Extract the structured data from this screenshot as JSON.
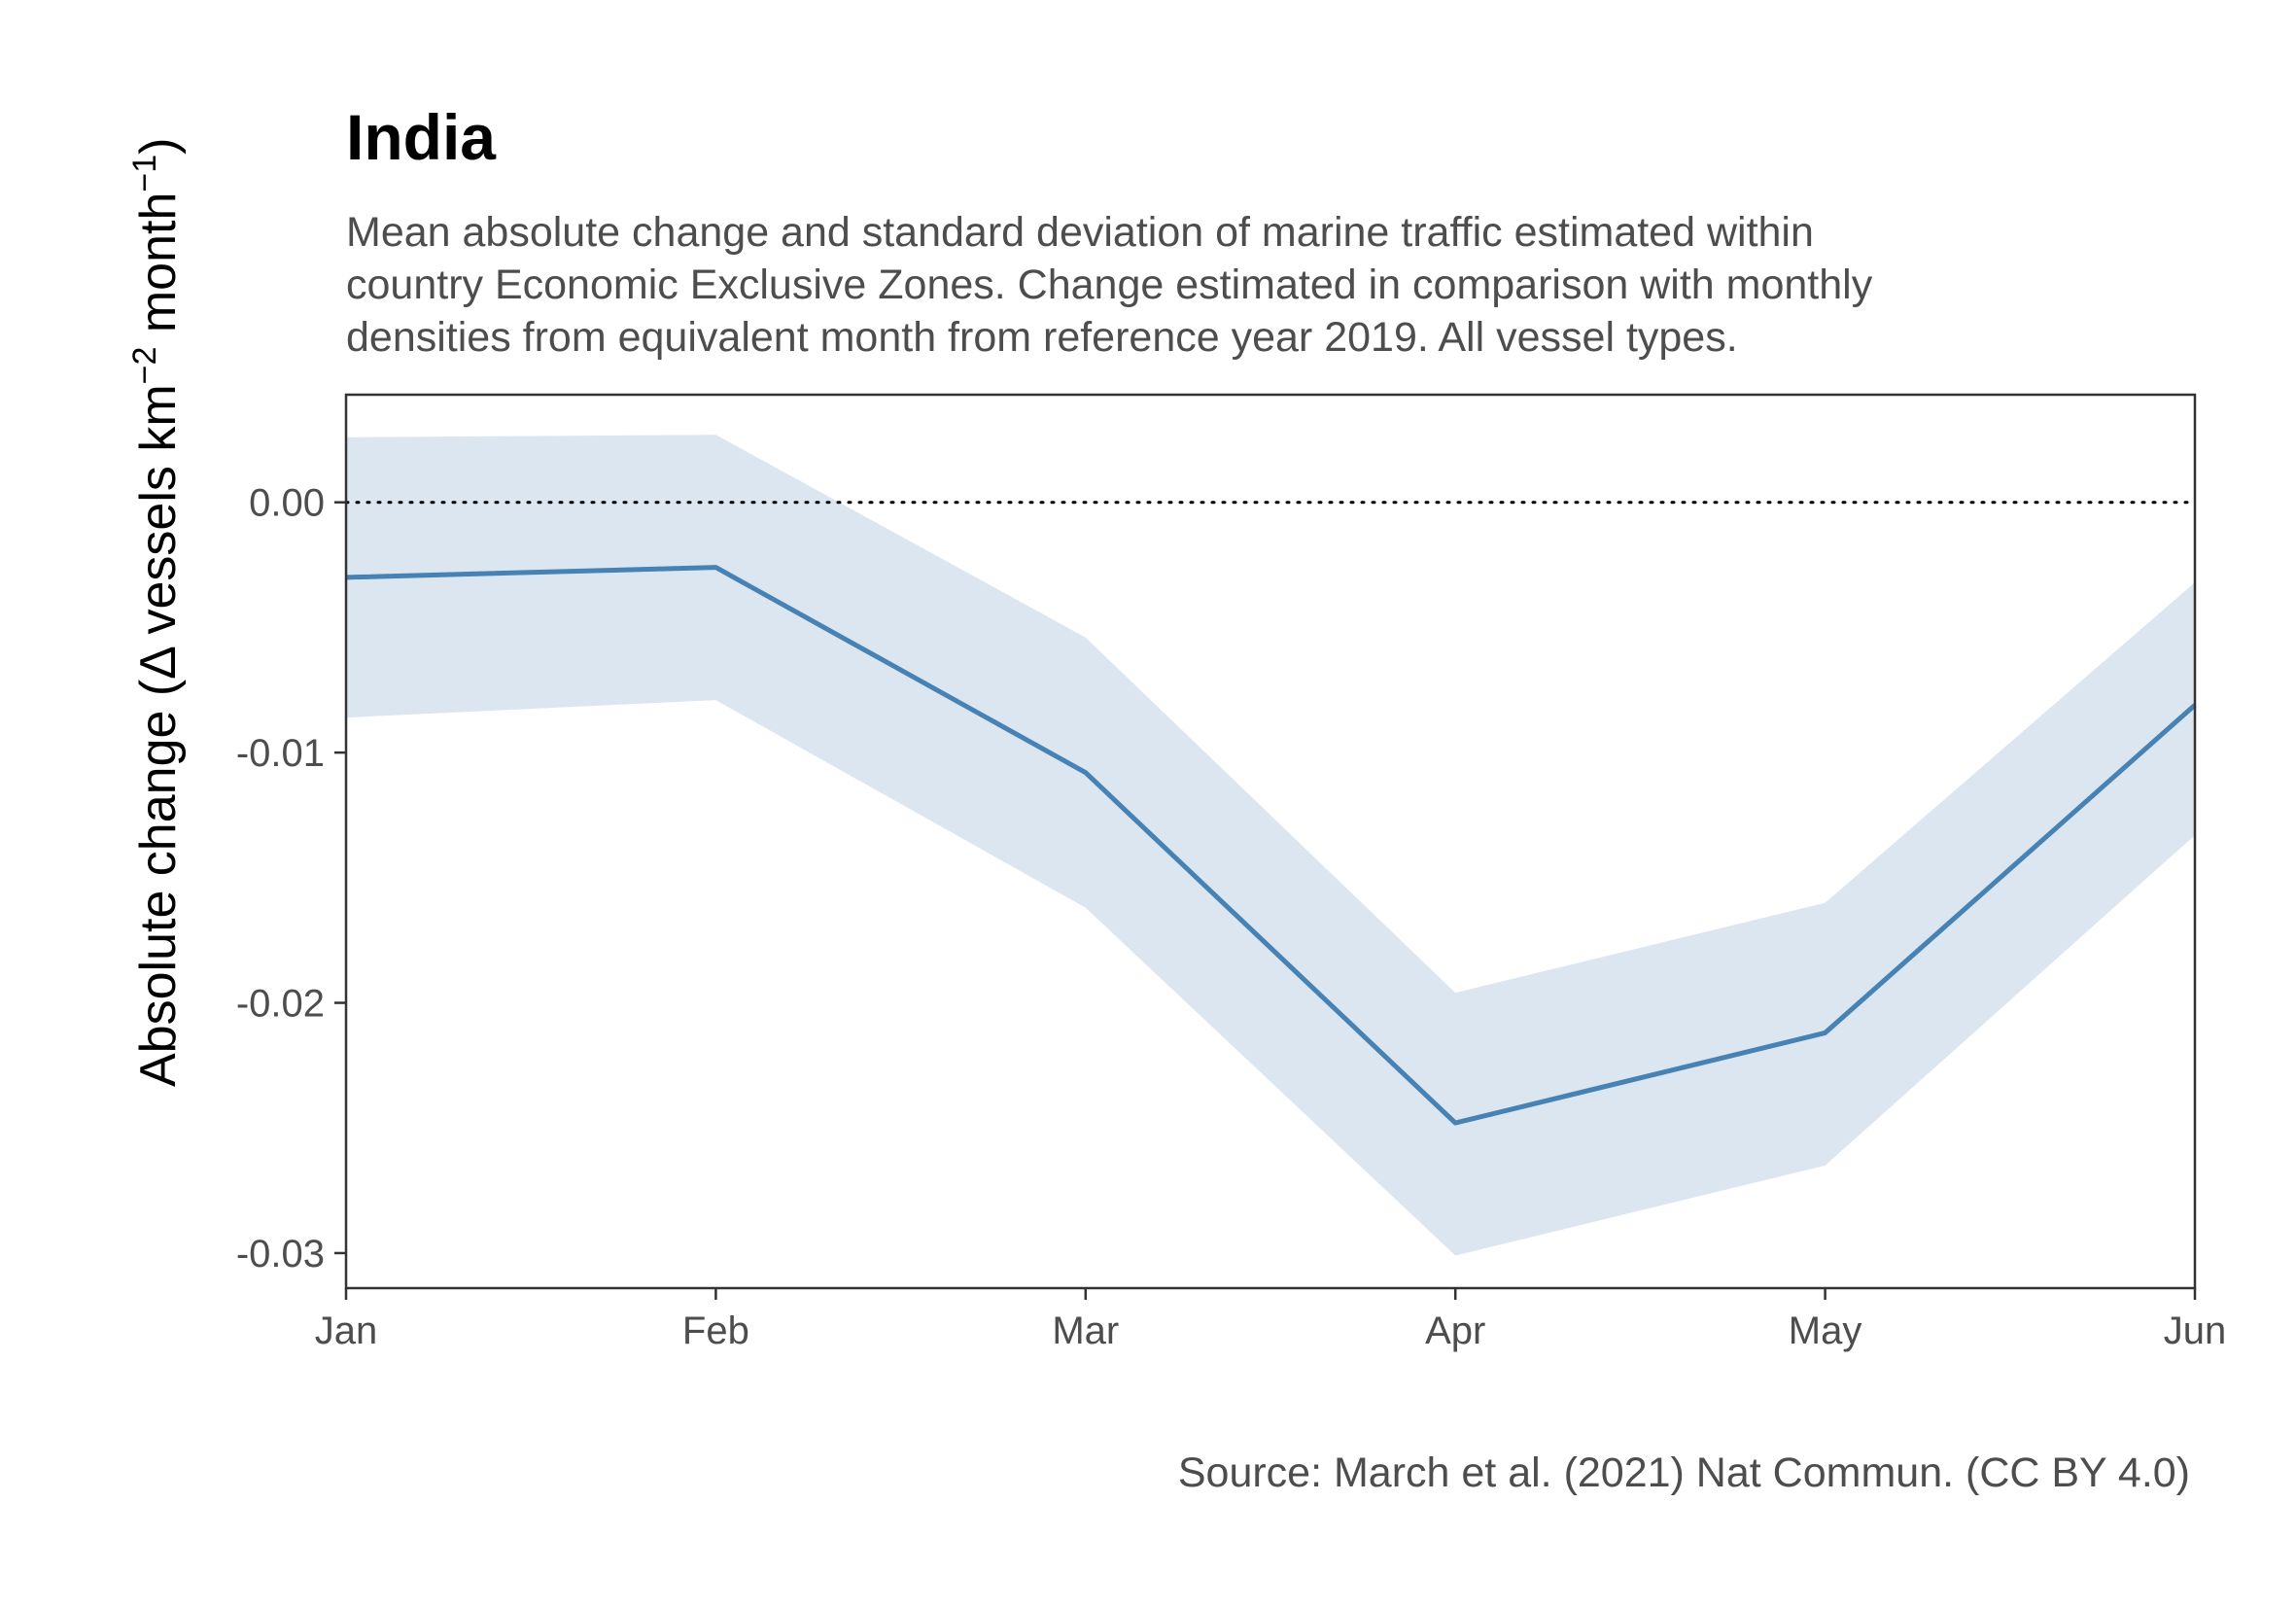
{
  "chart_data": {
    "type": "line",
    "title": "India",
    "subtitle": [
      "Mean absolute change and standard deviation of marine traffic estimated within",
      "country Economic Exclusive Zones. Change estimated in comparison with monthly",
      "densities from equivalent month from reference year 2019. All vessel types."
    ],
    "caption": "Source: March et al. (2021) Nat Commun. (CC BY 4.0)",
    "ylabel_parts": {
      "pre": "Absolute change (Δ vessels km",
      "sup1": "−2",
      "mid": " month",
      "sup2": "−1",
      "post": ")"
    },
    "xlabel": "",
    "categories": [
      "Jan",
      "Feb",
      "Mar",
      "Apr",
      "May",
      "Jun"
    ],
    "series": [
      {
        "name": "mean",
        "values": [
          -0.003,
          -0.0026,
          -0.0108,
          -0.0248,
          -0.0212,
          -0.0081
        ]
      }
    ],
    "ribbon": {
      "name": "sd",
      "lower": [
        -0.0086,
        -0.0079,
        -0.0162,
        -0.0301,
        -0.0265,
        -0.0133
      ],
      "upper": [
        0.0026,
        0.0027,
        -0.0054,
        -0.0196,
        -0.016,
        -0.0032
      ]
    },
    "yticks": [
      0.0,
      -0.01,
      -0.02,
      -0.03
    ],
    "ytick_labels": [
      "0.00",
      "-0.01",
      "-0.02",
      "-0.03"
    ],
    "ylim": [
      -0.0314,
      0.0043
    ],
    "reference_line": 0,
    "grid": false,
    "colors": {
      "line": "#4682b4",
      "ribbon": "#dce6f0",
      "frame": "#333333",
      "refline": "#000000"
    }
  }
}
